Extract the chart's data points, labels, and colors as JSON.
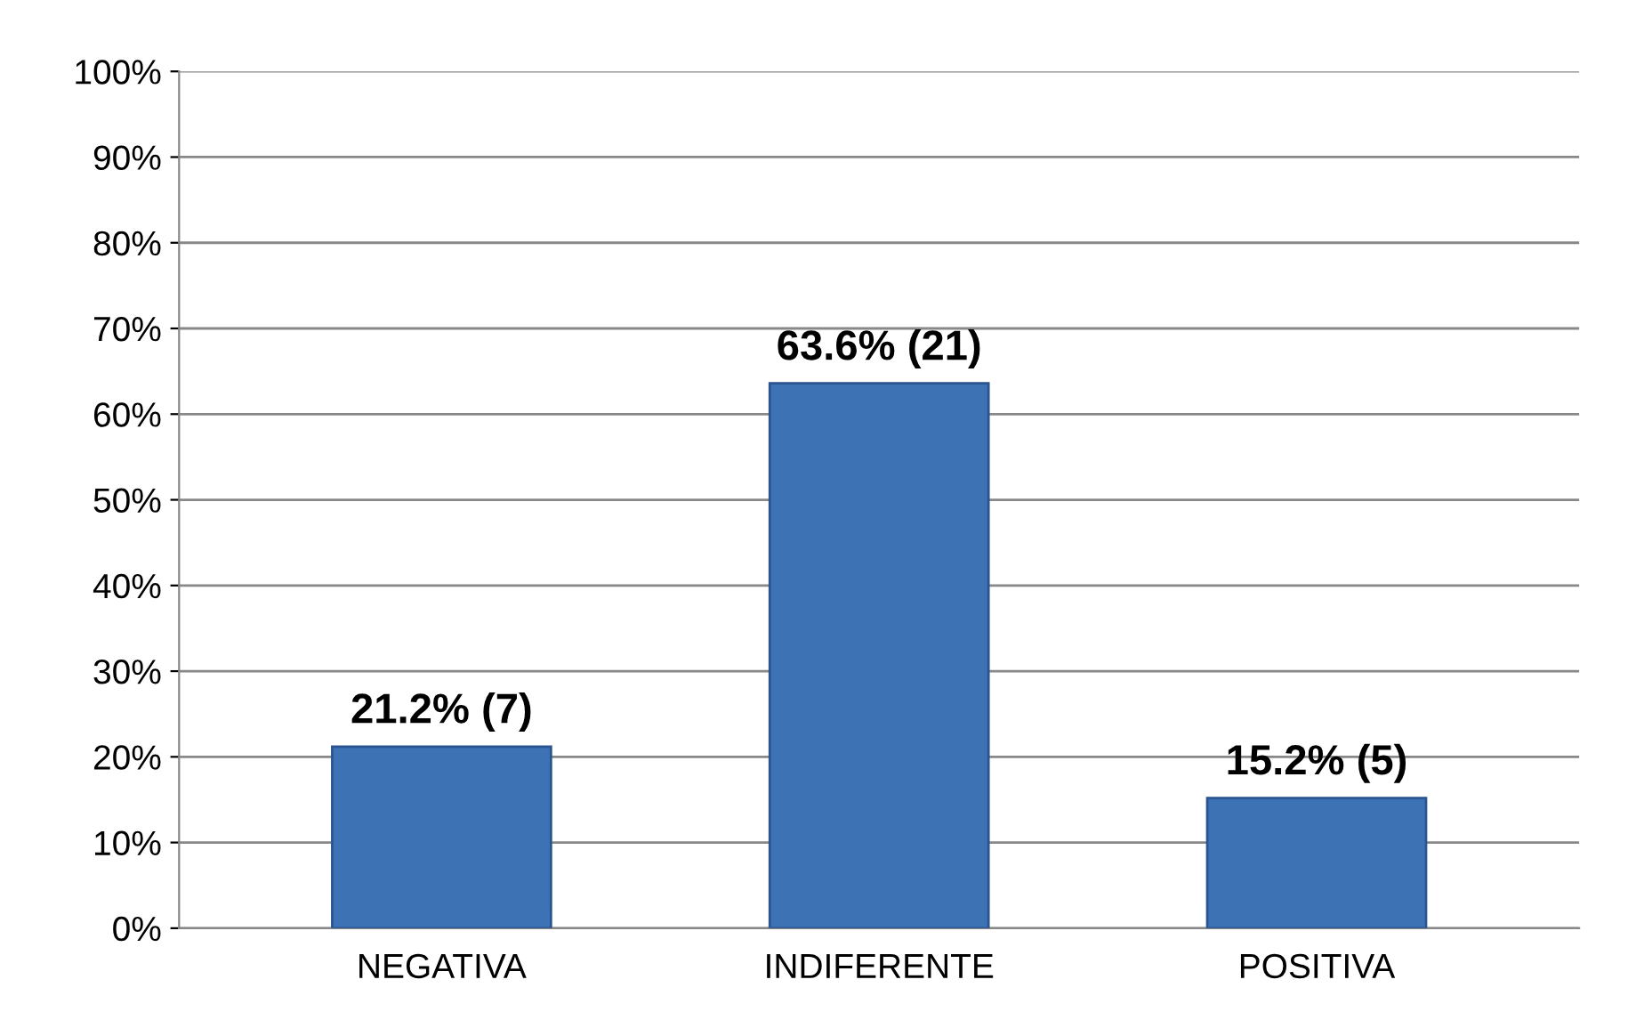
{
  "chart_data": {
    "type": "bar",
    "categories": [
      "NEGATIVA",
      "INDIFERENTE",
      "POSITIVA"
    ],
    "values": [
      21.2,
      63.6,
      15.2
    ],
    "value_labels": [
      "21.2% (7)",
      "63.6% (21)",
      "15.2% (5)"
    ],
    "color": "#3d72b4",
    "ylim": [
      0,
      100
    ],
    "yticks": [
      {
        "value": 0,
        "label": "0%"
      },
      {
        "value": 10,
        "label": "10%"
      },
      {
        "value": 20,
        "label": "20%"
      },
      {
        "value": 30,
        "label": "30%"
      },
      {
        "value": 40,
        "label": "40%"
      },
      {
        "value": 50,
        "label": "50%"
      },
      {
        "value": 60,
        "label": "60%"
      },
      {
        "value": 70,
        "label": "70%"
      },
      {
        "value": 80,
        "label": "80%"
      },
      {
        "value": 90,
        "label": "90%"
      },
      {
        "value": 100,
        "label": "100%"
      }
    ],
    "grid": "y"
  }
}
